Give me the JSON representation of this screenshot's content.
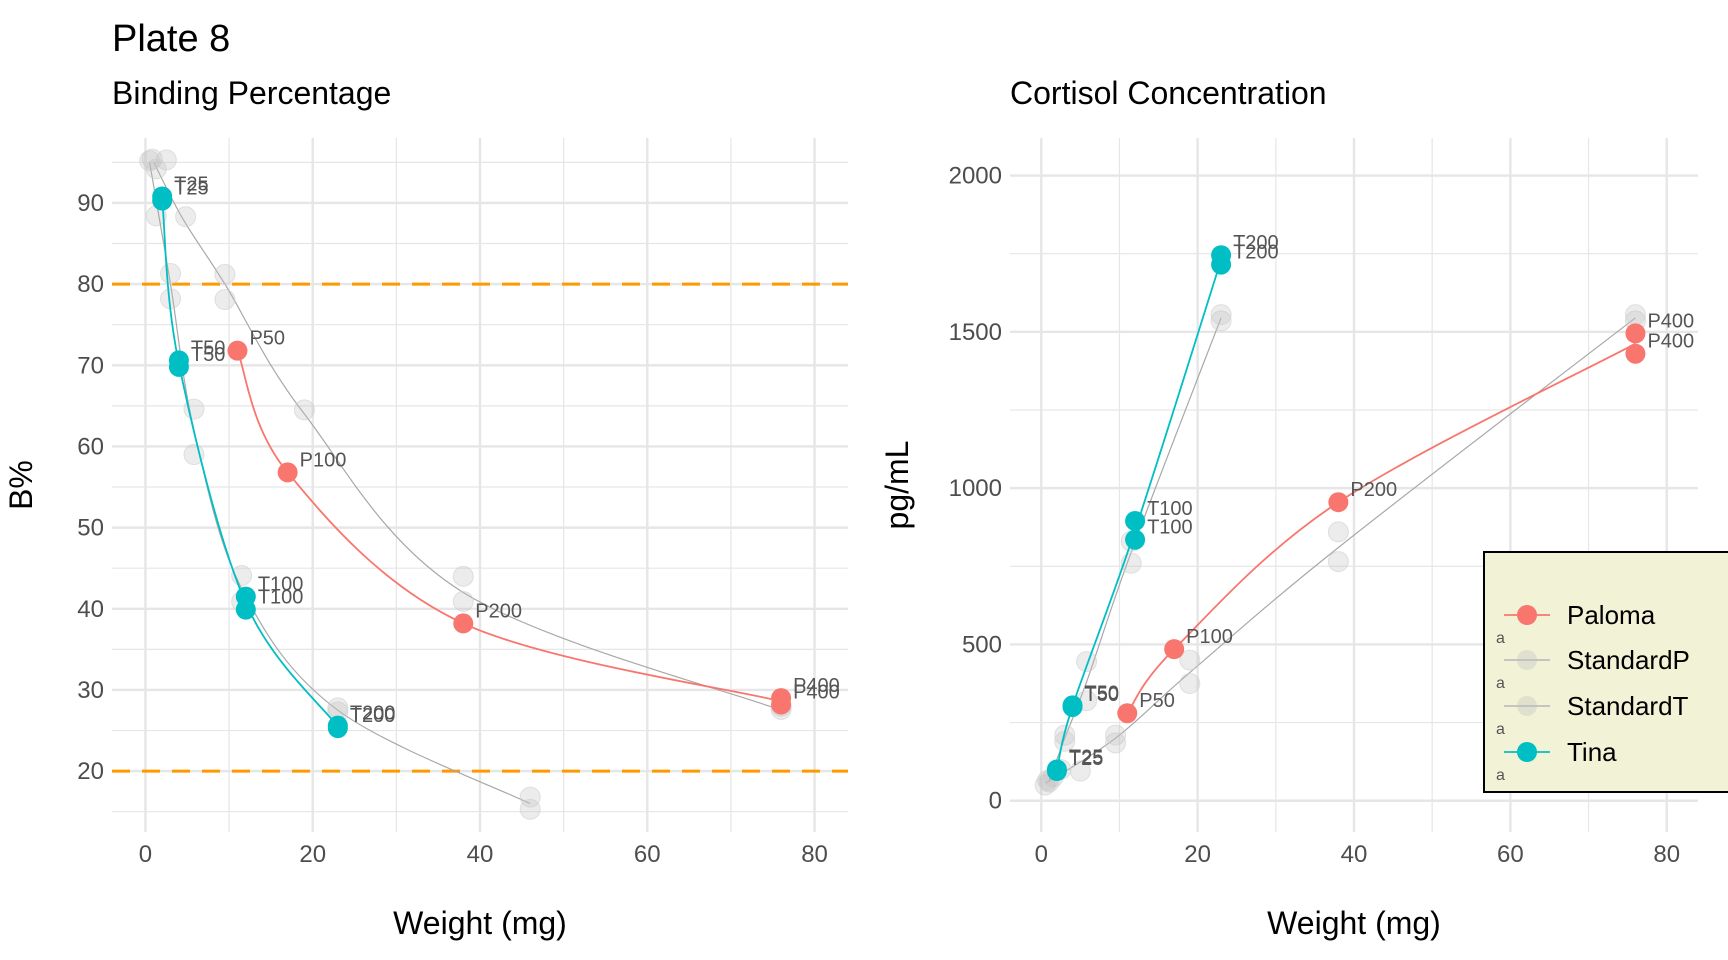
{
  "title": "Plate 8",
  "colors": {
    "Paloma": "#F8766D",
    "Tina": "#00BFC4",
    "Standard": "#bfbfbf",
    "threshold": "#FF9900",
    "grid": "#e6e6e6",
    "legend_bg": "#F2F2D6"
  },
  "legend": {
    "entries": [
      "Paloma",
      "StandardP",
      "StandardT",
      "Tina"
    ],
    "key_glyph": "a"
  },
  "chart_data": [
    {
      "type": "line",
      "subtitle": "Binding Percentage",
      "xlabel": "Weight (mg)",
      "ylabel": "B%",
      "xlim": [
        -4,
        84
      ],
      "ylim": [
        12.5,
        98
      ],
      "x_ticks": [
        0,
        20,
        40,
        60,
        80
      ],
      "y_ticks": [
        20,
        30,
        40,
        50,
        60,
        70,
        80,
        90
      ],
      "hlines": [
        80,
        20
      ],
      "grid": true,
      "series": [
        {
          "name": "Paloma",
          "points": [
            {
              "x": 11,
              "y": 71.8,
              "label": "P50"
            },
            {
              "x": 17,
              "y": 56.8,
              "label": "P100"
            },
            {
              "x": 38,
              "y": 38.2,
              "label": "P200"
            },
            {
              "x": 76,
              "y": 29.0,
              "label": "P400"
            },
            {
              "x": 76,
              "y": 28.2,
              "label": "P400"
            }
          ],
          "curve": [
            [
              11,
              71.8
            ],
            [
              17,
              56.8
            ],
            [
              38,
              38.2
            ],
            [
              76,
              28.6
            ]
          ]
        },
        {
          "name": "Tina",
          "points": [
            {
              "x": 2,
              "y": 90.8,
              "label": "T25"
            },
            {
              "x": 2,
              "y": 90.3,
              "label": "T25"
            },
            {
              "x": 4,
              "y": 70.6,
              "label": "T50"
            },
            {
              "x": 4,
              "y": 69.8,
              "label": "T50"
            },
            {
              "x": 12,
              "y": 41.5,
              "label": "T100"
            },
            {
              "x": 12,
              "y": 39.9,
              "label": "T100"
            },
            {
              "x": 23,
              "y": 25.6,
              "label": "T200"
            },
            {
              "x": 23,
              "y": 25.3,
              "label": "T200"
            }
          ],
          "curve": [
            [
              2,
              90.5
            ],
            [
              4,
              70.2
            ],
            [
              12,
              40.7
            ],
            [
              23,
              25.5
            ]
          ]
        },
        {
          "name": "StandardP",
          "points": [
            [
              0.8,
              95.4
            ],
            [
              2.5,
              95.3
            ],
            [
              1.3,
              88.4
            ],
            [
              4.8,
              88.3
            ],
            [
              9.5,
              81.2
            ],
            [
              9.5,
              78.1
            ],
            [
              19,
              64.5
            ],
            [
              38,
              44.0
            ],
            [
              38,
              40.9
            ],
            [
              76,
              28.0
            ],
            [
              76,
              27.6
            ]
          ],
          "curve": [
            [
              1,
              95
            ],
            [
              4.5,
              88
            ],
            [
              9.5,
              80
            ],
            [
              19,
              64
            ],
            [
              38,
              42
            ],
            [
              76,
              27.5
            ]
          ]
        },
        {
          "name": "StandardT",
          "points": [
            [
              0.5,
              95.2
            ],
            [
              1.3,
              94.2
            ],
            [
              3,
              81.3
            ],
            [
              3,
              78.2
            ],
            [
              5.8,
              64.6
            ],
            [
              5.8,
              59.0
            ],
            [
              11.5,
              44.1
            ],
            [
              11.5,
              40.9
            ],
            [
              23,
              27.8
            ],
            [
              23,
              27.3
            ],
            [
              46,
              16.8
            ],
            [
              46,
              15.3
            ]
          ],
          "curve": [
            [
              0.5,
              95
            ],
            [
              3,
              80
            ],
            [
              5.8,
              62
            ],
            [
              11.5,
              42.5
            ],
            [
              23,
              27.5
            ],
            [
              46,
              16
            ]
          ]
        }
      ]
    },
    {
      "type": "line",
      "subtitle": "Cortisol Concentration",
      "xlabel": "Weight (mg)",
      "ylabel": "pg/mL",
      "xlim": [
        -4,
        84
      ],
      "ylim": [
        -100,
        2120
      ],
      "x_ticks": [
        0,
        20,
        40,
        60,
        80
      ],
      "y_ticks": [
        0,
        500,
        1000,
        1500,
        2000
      ],
      "grid": true,
      "series": [
        {
          "name": "Paloma",
          "points": [
            {
              "x": 11,
              "y": 280,
              "label": "P50"
            },
            {
              "x": 17,
              "y": 485,
              "label": "P100"
            },
            {
              "x": 38,
              "y": 955,
              "label": "P200"
            },
            {
              "x": 76,
              "y": 1495,
              "label": "P400"
            },
            {
              "x": 76,
              "y": 1430,
              "label": "P400"
            }
          ],
          "curve": [
            [
              11,
              280
            ],
            [
              17,
              485
            ],
            [
              38,
              955
            ],
            [
              76,
              1462
            ]
          ]
        },
        {
          "name": "Tina",
          "points": [
            {
              "x": 2,
              "y": 100,
              "label": "T25"
            },
            {
              "x": 2,
              "y": 95,
              "label": "T25"
            },
            {
              "x": 4,
              "y": 305,
              "label": "T50"
            },
            {
              "x": 4,
              "y": 300,
              "label": "T50"
            },
            {
              "x": 12,
              "y": 895,
              "label": "T100"
            },
            {
              "x": 12,
              "y": 835,
              "label": "T100"
            },
            {
              "x": 23,
              "y": 1745,
              "label": "T200"
            },
            {
              "x": 23,
              "y": 1715,
              "label": "T200"
            }
          ],
          "curve": [
            [
              2,
              97
            ],
            [
              4,
              302
            ],
            [
              12,
              865
            ],
            [
              23,
              1730
            ]
          ]
        },
        {
          "name": "StandardP",
          "points": [
            [
              0.5,
              50
            ],
            [
              0.8,
              65
            ],
            [
              2.5,
              100
            ],
            [
              5,
              95
            ],
            [
              9.5,
              185
            ],
            [
              9.5,
              210
            ],
            [
              19,
              375
            ],
            [
              19,
              450
            ],
            [
              38,
              765
            ],
            [
              38,
              860
            ],
            [
              76,
              1535
            ],
            [
              76,
              1555
            ]
          ],
          "curve": [
            [
              0.5,
              55
            ],
            [
              9.5,
              200
            ],
            [
              19,
              410
            ],
            [
              38,
              810
            ],
            [
              76,
              1545
            ]
          ]
        },
        {
          "name": "StandardT",
          "points": [
            [
              1,
              60
            ],
            [
              1.5,
              75
            ],
            [
              3,
              210
            ],
            [
              3,
              190
            ],
            [
              5.8,
              445
            ],
            [
              5.8,
              320
            ],
            [
              11.5,
              760
            ],
            [
              11.5,
              830
            ],
            [
              23,
              1535
            ],
            [
              23,
              1555
            ]
          ],
          "curve": [
            [
              1,
              65
            ],
            [
              3,
              200
            ],
            [
              5.8,
              380
            ],
            [
              11.5,
              795
            ],
            [
              23,
              1545
            ]
          ]
        }
      ]
    }
  ]
}
